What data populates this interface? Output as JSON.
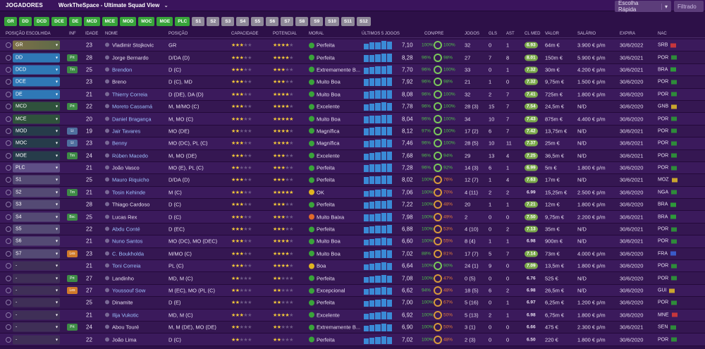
{
  "topbar": {
    "title": "JOGADORES",
    "view": "WorkTheSpace - Ultimate Squad View",
    "quick_select": "Escolha Rápida",
    "filter": "Filtrado"
  },
  "chips": [
    {
      "label": "GR",
      "color": "green"
    },
    {
      "label": "DD",
      "color": "green"
    },
    {
      "label": "DCD",
      "color": "green"
    },
    {
      "label": "DCE",
      "color": "green"
    },
    {
      "label": "DE",
      "color": "green"
    },
    {
      "label": "MCD",
      "color": "green"
    },
    {
      "label": "MCE",
      "color": "green"
    },
    {
      "label": "MOD",
      "color": "green"
    },
    {
      "label": "MOC",
      "color": "green"
    },
    {
      "label": "MOE",
      "color": "green"
    },
    {
      "label": "PLC",
      "color": "green"
    },
    {
      "label": "S1",
      "color": "grey"
    },
    {
      "label": "S2",
      "color": "grey"
    },
    {
      "label": "S3",
      "color": "grey"
    },
    {
      "label": "S4",
      "color": "grey"
    },
    {
      "label": "S5",
      "color": "grey"
    },
    {
      "label": "S6",
      "color": "grey"
    },
    {
      "label": "S7",
      "color": "grey"
    },
    {
      "label": "S8",
      "color": "grey"
    },
    {
      "label": "S9",
      "color": "grey"
    },
    {
      "label": "S10",
      "color": "grey"
    },
    {
      "label": "S11",
      "color": "grey"
    },
    {
      "label": "S12",
      "color": "grey"
    }
  ],
  "headers": {
    "pos_chosen": "POSIÇÃO ESCOLHIDA",
    "inf": "INF",
    "age": "IDADE",
    "name": "NOME",
    "position": "POSIÇÃO",
    "capacity": "CAPACIDADE",
    "potential": "POTENCIAL",
    "moral": "MORAL",
    "last5": "ÚLTIMOS 5 JOGOS",
    "cond": "CON/PRE",
    "games": "JOGOS",
    "goals": "GLS",
    "assists": "AST",
    "rating": "CL MED",
    "value": "VALOR",
    "salary": "SALÁRIO",
    "expires": "EXPIRA",
    "nat": "NAC"
  },
  "players": [
    {
      "slot": "GR",
      "slot_style": "gr",
      "inf": "",
      "age": "23",
      "name": "Vladimir Stojkovic",
      "link": false,
      "pos": "GR",
      "cap": 3,
      "pot": 4,
      "moral": "Perfeita",
      "mcolor": "#3aa43a",
      "form": [
        8,
        10,
        10,
        12,
        11
      ],
      "rating": "7,10",
      "con": "100%",
      "pre": "100%",
      "low": false,
      "games": "32",
      "gls": "0",
      "ast": "1",
      "clmed": "6.93",
      "clhi": true,
      "valor": "64m €",
      "sal": "3.900 € p/m",
      "exp": "30/6/2022",
      "nac": "SRB",
      "flag": "#c6363c"
    },
    {
      "slot": "DD",
      "slot_style": "def",
      "inf": "Prt",
      "inf_c": "green",
      "age": "28",
      "name": "Jorge Bernardo",
      "link": false,
      "pos": "D/DA (D)",
      "cap": 3,
      "pot": 4,
      "moral": "Perfeita",
      "mcolor": "#3aa43a",
      "form": [
        10,
        10,
        11,
        12,
        12
      ],
      "rating": "8,28",
      "con": "96%",
      "pre": "98%",
      "low": false,
      "games": "27",
      "gls": "7",
      "ast": "8",
      "clmed": "8.01",
      "clhi": true,
      "valor": "150m €",
      "sal": "5.900 € p/m",
      "exp": "30/6/2021",
      "nac": "POR",
      "flag": "#2e8b3a"
    },
    {
      "slot": "DCD",
      "slot_style": "def",
      "inf": "Trn",
      "inf_c": "green",
      "age": "25",
      "name": "Brendon",
      "link": true,
      "pos": "D (C)",
      "cap": 3,
      "pot": 3,
      "moral": "Extremamente B...",
      "mcolor": "#3aa43a",
      "form": [
        9,
        10,
        11,
        11,
        12
      ],
      "rating": "7,70",
      "con": "96%",
      "pre": "100%",
      "low": false,
      "games": "33",
      "gls": "0",
      "ast": "1",
      "clmed": "7.32",
      "clhi": true,
      "valor": "30m €",
      "sal": "4.200 € p/m",
      "exp": "30/6/2021",
      "nac": "BRA",
      "flag": "#2e9a3a"
    },
    {
      "slot": "DCE",
      "slot_style": "def",
      "inf": "",
      "age": "23",
      "name": "Breno",
      "link": false,
      "pos": "D (C), MD",
      "cap": 3,
      "pot": 3,
      "moral": "Muito Boa",
      "mcolor": "#3aa43a",
      "form": [
        10,
        11,
        11,
        12,
        12
      ],
      "rating": "7,92",
      "con": "96%",
      "pre": "98%",
      "low": false,
      "games": "21",
      "gls": "1",
      "ast": "0",
      "clmed": "7.32",
      "clhi": true,
      "valor": "9,75m €",
      "sal": "1.500 € p/m",
      "exp": "30/6/2020",
      "nac": "POR",
      "flag": "#2e8b3a"
    },
    {
      "slot": "DE",
      "slot_style": "def",
      "inf": "",
      "age": "21",
      "name": "Thierry Correia",
      "link": true,
      "pos": "D (DE), DA (D)",
      "cap": 3,
      "pot": 4,
      "moral": "Muito Boa",
      "mcolor": "#3aa43a",
      "form": [
        10,
        11,
        12,
        12,
        12
      ],
      "rating": "8,08",
      "con": "96%",
      "pre": "100%",
      "low": false,
      "games": "32",
      "gls": "2",
      "ast": "7",
      "clmed": "7.41",
      "clhi": true,
      "valor": "725m €",
      "sal": "1.800 € p/m",
      "exp": "30/6/2020",
      "nac": "POR",
      "flag": "#2e8b3a"
    },
    {
      "slot": "MCD",
      "slot_style": "mid",
      "inf": "Prt",
      "inf_c": "green",
      "age": "22",
      "name": "Moreto Cassamá",
      "link": true,
      "pos": "M, M/MO (C)",
      "cap": 3,
      "pot": 4,
      "moral": "Excelente",
      "mcolor": "#3aa43a",
      "form": [
        9,
        10,
        11,
        12,
        11
      ],
      "rating": "7,78",
      "con": "96%",
      "pre": "100%",
      "low": false,
      "games": "28 (3)",
      "gls": "15",
      "ast": "7",
      "clmed": "7.54",
      "clhi": true,
      "valor": "24,5m €",
      "sal": "N/D",
      "exp": "30/6/2020",
      "nac": "GNB",
      "flag": "#c9a52e"
    },
    {
      "slot": "MCE",
      "slot_style": "mid",
      "inf": "",
      "age": "20",
      "name": "Daniel Bragança",
      "link": true,
      "pos": "M, MO (C)",
      "cap": 3,
      "pot": 5,
      "moral": "Muito Boa",
      "mcolor": "#3aa43a",
      "form": [
        10,
        11,
        11,
        12,
        12
      ],
      "rating": "8,04",
      "con": "96%",
      "pre": "100%",
      "low": false,
      "games": "34",
      "gls": "10",
      "ast": "7",
      "clmed": "7.43",
      "clhi": true,
      "valor": "875m €",
      "sal": "4.400 € p/m",
      "exp": "30/6/2020",
      "nac": "POR",
      "flag": "#2e8b3a"
    },
    {
      "slot": "MOD",
      "slot_style": "att",
      "inf": "Lt",
      "inf_c": "blue",
      "age": "19",
      "name": "Jair Tavares",
      "link": true,
      "pos": "MO (DE)",
      "cap": 2,
      "pot": 4,
      "moral": "Magnífica",
      "mcolor": "#3aa43a",
      "form": [
        10,
        11,
        12,
        12,
        12
      ],
      "rating": "8,12",
      "con": "97%",
      "pre": "100%",
      "low": false,
      "games": "17 (2)",
      "gls": "6",
      "ast": "7",
      "clmed": "7.42",
      "clhi": true,
      "valor": "13,75m €",
      "sal": "N/D",
      "exp": "30/6/2021",
      "nac": "POR",
      "flag": "#2e8b3a"
    },
    {
      "slot": "MOC",
      "slot_style": "att",
      "inf": "Lt",
      "inf_c": "blue",
      "age": "23",
      "name": "Benny",
      "link": true,
      "pos": "MO (DC), PL (C)",
      "cap": 3,
      "pot": 4,
      "moral": "Magnífica",
      "mcolor": "#3aa43a",
      "form": [
        9,
        10,
        11,
        12,
        11
      ],
      "rating": "7,46",
      "con": "96%",
      "pre": "100%",
      "low": false,
      "games": "28 (5)",
      "gls": "10",
      "ast": "11",
      "clmed": "7.37",
      "clhi": true,
      "valor": "25m €",
      "sal": "N/D",
      "exp": "30/6/2021",
      "nac": "POR",
      "flag": "#2e8b3a"
    },
    {
      "slot": "MOE",
      "slot_style": "att",
      "inf": "Trn",
      "inf_c": "green",
      "age": "24",
      "name": "Rúben Macedo",
      "link": true,
      "pos": "M, MO (DE)",
      "cap": 3,
      "pot": 3,
      "moral": "Excelente",
      "mcolor": "#3aa43a",
      "form": [
        9,
        10,
        11,
        12,
        12
      ],
      "rating": "7,68",
      "con": "96%",
      "pre": "94%",
      "low": false,
      "games": "29",
      "gls": "13",
      "ast": "4",
      "clmed": "7.25",
      "clhi": true,
      "valor": "36,5m €",
      "sal": "N/D",
      "exp": "30/6/2021",
      "nac": "POR",
      "flag": "#2e8b3a"
    },
    {
      "slot": "PLC",
      "slot_style": "plc",
      "inf": "",
      "age": "21",
      "name": "João Vasco",
      "link": false,
      "pos": "MO (E), PL (C)",
      "cap": 2,
      "pot": 3,
      "moral": "Perfeita",
      "mcolor": "#3aa43a",
      "form": [
        10,
        11,
        11,
        12,
        12
      ],
      "rating": "7,28",
      "con": "96%",
      "pre": "92%",
      "low": false,
      "games": "14 (3)",
      "gls": "6",
      "ast": "1",
      "clmed": "6.99",
      "clhi": true,
      "valor": "5m €",
      "sal": "1.800 € p/m",
      "exp": "30/6/2020",
      "nac": "POR",
      "flag": "#2e8b3a"
    },
    {
      "slot": "S1",
      "slot_style": "sub",
      "inf": "",
      "age": "25",
      "name": "Mauro Riquicho",
      "link": true,
      "pos": "D/DA (D)",
      "cap": 3,
      "pot": 3,
      "moral": "Perfeita",
      "mcolor": "#3aa43a",
      "form": [
        10,
        11,
        11,
        12,
        12
      ],
      "rating": "8,02",
      "con": "100%",
      "pre": "76%",
      "low": true,
      "games": "12 (7)",
      "gls": "1",
      "ast": "4",
      "clmed": "7.63",
      "clhi": true,
      "valor": "17m €",
      "sal": "N/D",
      "exp": "30/6/2021",
      "nac": "MOZ",
      "flag": "#c9a52e"
    },
    {
      "slot": "S2",
      "slot_style": "sub",
      "inf": "Trn",
      "inf_c": "green",
      "age": "21",
      "name": "Tosin Kehinde",
      "link": true,
      "pos": "M (C)",
      "cap": 3,
      "pot": 5,
      "moral": "OK",
      "mcolor": "#e0b420",
      "form": [
        8,
        9,
        10,
        11,
        10
      ],
      "rating": "7,06",
      "con": "100%",
      "pre": "70%",
      "low": true,
      "games": "4 (11)",
      "gls": "2",
      "ast": "2",
      "clmed": "6.99",
      "clhi": false,
      "valor": "15,25m €",
      "sal": "2.500 € p/m",
      "exp": "30/6/2020",
      "nac": "NGA",
      "flag": "#2e8b3a"
    },
    {
      "slot": "S3",
      "slot_style": "sub",
      "inf": "",
      "age": "28",
      "name": "Thiago Cardoso",
      "link": false,
      "pos": "D (C)",
      "cap": 3,
      "pot": 3,
      "moral": "Perfeita",
      "mcolor": "#3aa43a",
      "form": [
        9,
        10,
        11,
        11,
        12
      ],
      "rating": "7,22",
      "con": "100%",
      "pre": "48%",
      "low": true,
      "games": "20",
      "gls": "1",
      "ast": "1",
      "clmed": "7.21",
      "clhi": true,
      "valor": "12m €",
      "sal": "1.800 € p/m",
      "exp": "30/6/2020",
      "nac": "BRA",
      "flag": "#2e9a3a"
    },
    {
      "slot": "S4",
      "slot_style": "sub",
      "inf": "Bsc",
      "inf_c": "green",
      "age": "25",
      "name": "Lucas Rex",
      "link": false,
      "pos": "D (C)",
      "cap": 3,
      "pot": 3,
      "moral": "Muito Baixa",
      "mcolor": "#e06a2a",
      "form": [
        10,
        10,
        11,
        12,
        12
      ],
      "rating": "7,98",
      "con": "100%",
      "pre": "49%",
      "low": true,
      "games": "2",
      "gls": "0",
      "ast": "0",
      "clmed": "7.50",
      "clhi": true,
      "valor": "9,75m €",
      "sal": "2.200 € p/m",
      "exp": "30/6/2021",
      "nac": "BRA",
      "flag": "#2e9a3a"
    },
    {
      "slot": "S5",
      "slot_style": "sub",
      "inf": "",
      "age": "22",
      "name": "Abdu Conté",
      "link": true,
      "pos": "D (EC)",
      "cap": 3,
      "pot": 3,
      "moral": "Perfeita",
      "mcolor": "#3aa43a",
      "form": [
        9,
        10,
        11,
        11,
        12
      ],
      "rating": "6,88",
      "con": "100%",
      "pre": "53%",
      "low": true,
      "games": "4 (10)",
      "gls": "0",
      "ast": "2",
      "clmed": "7.13",
      "clhi": true,
      "valor": "35m €",
      "sal": "N/D",
      "exp": "30/6/2021",
      "nac": "POR",
      "flag": "#2e8b3a"
    },
    {
      "slot": "S6",
      "slot_style": "sub",
      "inf": "",
      "age": "21",
      "name": "Nuno Santos",
      "link": true,
      "pos": "MO (DC), MO (DEC)",
      "cap": 3,
      "pot": 4,
      "moral": "Muito Boa",
      "mcolor": "#3aa43a",
      "form": [
        8,
        9,
        10,
        11,
        10
      ],
      "rating": "6,60",
      "con": "100%",
      "pre": "55%",
      "low": true,
      "games": "8 (4)",
      "gls": "1",
      "ast": "1",
      "clmed": "6.98",
      "clhi": false,
      "valor": "900m €",
      "sal": "N/D",
      "exp": "30/6/2021",
      "nac": "POR",
      "flag": "#2e8b3a"
    },
    {
      "slot": "S7",
      "slot_style": "sub",
      "inf": "Les",
      "inf_c": "orange",
      "age": "23",
      "name": "C. Boukholda",
      "link": true,
      "pos": "M/MO (C)",
      "cap": 3,
      "pot": 4,
      "moral": "Muito Boa",
      "mcolor": "#3aa43a",
      "form": [
        9,
        10,
        11,
        12,
        11
      ],
      "rating": "7,02",
      "con": "88%",
      "pre": "81%",
      "low": true,
      "games": "17 (7)",
      "gls": "5",
      "ast": "7",
      "clmed": "7.14",
      "clhi": true,
      "valor": "73m €",
      "sal": "4.000 € p/m",
      "exp": "30/6/2020",
      "nac": "FRA",
      "flag": "#3a5ac8"
    },
    {
      "slot": "-",
      "slot_style": "res",
      "inf": "",
      "age": "21",
      "name": "Toni Correia",
      "link": true,
      "pos": "PL (C)",
      "cap": 3,
      "pot": 4,
      "moral": "Boa",
      "mcolor": "#e0b420",
      "form": [
        8,
        9,
        10,
        11,
        10
      ],
      "rating": "6,64",
      "con": "100%",
      "pre": "90%",
      "low": false,
      "games": "24 (1)",
      "gls": "9",
      "ast": "0",
      "clmed": "7.09",
      "clhi": true,
      "valor": "13,5m €",
      "sal": "1.800 € p/m",
      "exp": "30/6/2020",
      "nac": "POR",
      "flag": "#2e8b3a"
    },
    {
      "slot": "-",
      "slot_style": "res",
      "inf": "Prt",
      "inf_c": "green",
      "age": "27",
      "name": "Landinho",
      "link": false,
      "pos": "MD, M (C)",
      "cap": 2,
      "pot": 2,
      "moral": "Perfeita",
      "mcolor": "#3aa43a",
      "form": [
        8,
        9,
        10,
        11,
        10
      ],
      "rating": "7,08",
      "con": "100%",
      "pre": "47%",
      "low": true,
      "games": "0 (5)",
      "gls": "0",
      "ast": "0",
      "clmed": "6.76",
      "clhi": false,
      "valor": "525 €",
      "sal": "N/D",
      "exp": "30/6/2020",
      "nac": "POR",
      "flag": "#2e8b3a"
    },
    {
      "slot": "-",
      "slot_style": "res",
      "inf": "Les",
      "inf_c": "orange",
      "age": "27",
      "name": "Youssouf Sow",
      "link": true,
      "pos": "M (EC), MO (PL (C)",
      "cap": 2,
      "pot": 2,
      "moral": "Excepcional",
      "mcolor": "#3aa43a",
      "form": [
        8,
        9,
        10,
        11,
        10
      ],
      "rating": "6,62",
      "con": "94%",
      "pre": "48%",
      "low": true,
      "games": "18 (5)",
      "gls": "6",
      "ast": "2",
      "clmed": "6.98",
      "clhi": false,
      "valor": "26,5m €",
      "sal": "N/D",
      "exp": "30/6/2020",
      "nac": "GUI",
      "flag": "#c9a52e"
    },
    {
      "slot": "-",
      "slot_style": "res",
      "inf": "",
      "age": "25",
      "name": "Dinamite",
      "link": false,
      "pos": "D (E)",
      "cap": 2,
      "pot": 2,
      "moral": "Perfeita",
      "mcolor": "#3aa43a",
      "form": [
        8,
        9,
        10,
        11,
        10
      ],
      "rating": "7,00",
      "con": "100%",
      "pre": "67%",
      "low": true,
      "games": "5 (16)",
      "gls": "0",
      "ast": "1",
      "clmed": "6.97",
      "clhi": false,
      "valor": "6,25m €",
      "sal": "1.200 € p/m",
      "exp": "30/6/2020",
      "nac": "POR",
      "flag": "#2e8b3a"
    },
    {
      "slot": "-",
      "slot_style": "res",
      "inf": "",
      "age": "21",
      "name": "Ilija Vukotic",
      "link": true,
      "pos": "MD, M (C)",
      "cap": 3,
      "pot": 4,
      "moral": "Excelente",
      "mcolor": "#3aa43a",
      "form": [
        8,
        9,
        10,
        11,
        10
      ],
      "rating": "6,92",
      "con": "100%",
      "pre": "50%",
      "low": true,
      "games": "5 (13)",
      "gls": "2",
      "ast": "1",
      "clmed": "6.98",
      "clhi": false,
      "valor": "6,75m €",
      "sal": "1.800 € p/m",
      "exp": "30/6/2020",
      "nac": "MNE",
      "flag": "#c6363c"
    },
    {
      "slot": "-",
      "slot_style": "res",
      "inf": "Prt",
      "inf_c": "green",
      "age": "24",
      "name": "Abou Touré",
      "link": false,
      "pos": "M, M (DE), MO (DE)",
      "cap": 2,
      "pot": 2,
      "moral": "Extremamente B...",
      "mcolor": "#3aa43a",
      "form": [
        8,
        9,
        10,
        11,
        10
      ],
      "rating": "6,90",
      "con": "100%",
      "pre": "50%",
      "low": true,
      "games": "3 (1)",
      "gls": "0",
      "ast": "0",
      "clmed": "6.66",
      "clhi": false,
      "valor": "475 €",
      "sal": "2.300 € p/m",
      "exp": "30/6/2021",
      "nac": "SEN",
      "flag": "#2e8b3a"
    },
    {
      "slot": "-",
      "slot_style": "res",
      "inf": "",
      "age": "22",
      "name": "João Lima",
      "link": false,
      "pos": "D (C)",
      "cap": 2,
      "pot": 2,
      "moral": "Perfeita",
      "mcolor": "#3aa43a",
      "form": [
        8,
        9,
        10,
        11,
        10
      ],
      "rating": "7,02",
      "con": "100%",
      "pre": "48%",
      "low": true,
      "games": "2 (3)",
      "gls": "0",
      "ast": "0",
      "clmed": "6.50",
      "clhi": false,
      "valor": "220 €",
      "sal": "1.800 € p/m",
      "exp": "30/6/2020",
      "nac": "POR",
      "flag": "#2e8b3a"
    }
  ]
}
